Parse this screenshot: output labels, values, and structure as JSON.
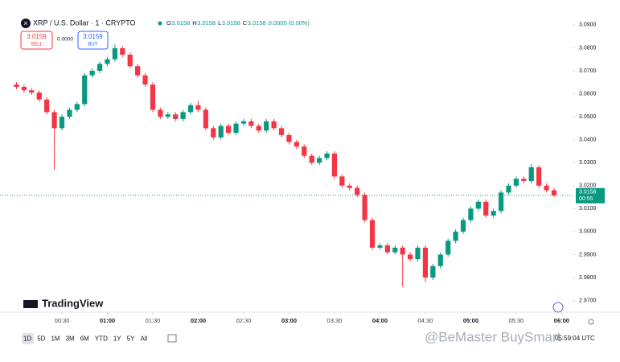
{
  "header": {
    "symbol": "XRP / U.S. Dollar · 1 · CRYPTO",
    "ohlc": [
      {
        "label": "O",
        "value": "3.0158"
      },
      {
        "label": "H",
        "value": "3.0158"
      },
      {
        "label": "L",
        "value": "3.0158"
      },
      {
        "label": "C",
        "value": "3.0158"
      }
    ],
    "change": "0.0000 (0.00%)",
    "sell": {
      "price": "3.0159",
      "label": "SELL"
    },
    "spread": "0.0000",
    "buy": {
      "price": "3.0159",
      "label": "BUY"
    }
  },
  "chart_data": {
    "type": "candlestick",
    "up_color": "#089981",
    "down_color": "#f23645",
    "x": [
      "00:00",
      "00:05",
      "00:10",
      "00:15",
      "00:20",
      "00:25",
      "00:30",
      "00:35",
      "00:40",
      "00:45",
      "00:50",
      "00:55",
      "01:00",
      "01:05",
      "01:10",
      "01:15",
      "01:20",
      "01:25",
      "01:30",
      "01:35",
      "01:40",
      "01:45",
      "01:50",
      "01:55",
      "02:00",
      "02:05",
      "02:10",
      "02:15",
      "02:20",
      "02:25",
      "02:30",
      "02:35",
      "02:40",
      "02:45",
      "02:50",
      "02:55",
      "03:00",
      "03:05",
      "03:10",
      "03:15",
      "03:20",
      "03:25",
      "03:30",
      "03:35",
      "03:40",
      "03:45",
      "03:50",
      "03:55",
      "04:00",
      "04:05",
      "04:10",
      "04:15",
      "04:20",
      "04:25",
      "04:30",
      "04:35",
      "04:40",
      "04:45",
      "04:50",
      "04:55",
      "05:00",
      "05:05",
      "05:10",
      "05:15",
      "05:20",
      "05:25",
      "05:30",
      "05:35",
      "05:40",
      "05:45",
      "05:50",
      "05:55"
    ],
    "open": [
      3.064,
      3.063,
      3.0615,
      3.0605,
      3.0575,
      3.052,
      3.045,
      3.05,
      3.053,
      3.0555,
      3.068,
      3.07,
      3.073,
      3.075,
      3.0798,
      3.077,
      3.072,
      3.068,
      3.064,
      3.053,
      3.05,
      3.051,
      3.049,
      3.052,
      3.055,
      3.053,
      3.045,
      3.041,
      3.046,
      3.043,
      3.047,
      3.048,
      3.046,
      3.044,
      3.048,
      3.045,
      3.042,
      3.039,
      3.037,
      3.033,
      3.03,
      3.032,
      3.034,
      3.024,
      3.02,
      3.019,
      3.016,
      3.005,
      2.993,
      2.994,
      2.991,
      2.993,
      2.99,
      2.988,
      2.993,
      2.98,
      2.985,
      2.99,
      2.996,
      3.0,
      3.005,
      3.01,
      3.013,
      3.007,
      3.009,
      3.017,
      3.02,
      3.023,
      3.022,
      3.028,
      3.02,
      3.018
    ],
    "high": [
      3.065,
      3.064,
      3.0625,
      3.0615,
      3.0585,
      3.053,
      3.051,
      3.054,
      3.0565,
      3.069,
      3.071,
      3.074,
      3.076,
      3.0815,
      3.0808,
      3.078,
      3.073,
      3.069,
      3.065,
      3.054,
      3.052,
      3.052,
      3.053,
      3.056,
      3.057,
      3.054,
      3.046,
      3.047,
      3.047,
      3.048,
      3.049,
      3.049,
      3.047,
      3.049,
      3.049,
      3.046,
      3.043,
      3.04,
      3.038,
      3.034,
      3.033,
      3.035,
      3.035,
      3.025,
      3.021,
      3.02,
      3.017,
      3.006,
      2.995,
      2.995,
      2.994,
      2.994,
      2.991,
      2.994,
      2.994,
      2.986,
      2.991,
      2.997,
      3.001,
      3.006,
      3.011,
      3.014,
      3.014,
      3.01,
      3.018,
      3.021,
      3.024,
      3.024,
      3.0295,
      3.029,
      3.021,
      3.019
    ],
    "low": [
      3.062,
      3.0605,
      3.0595,
      3.0565,
      3.051,
      3.027,
      3.044,
      3.049,
      3.052,
      3.0545,
      3.067,
      3.069,
      3.072,
      3.074,
      3.076,
      3.071,
      3.067,
      3.063,
      3.052,
      3.049,
      3.049,
      3.048,
      3.048,
      3.051,
      3.052,
      3.044,
      3.04,
      3.04,
      3.042,
      3.042,
      3.046,
      3.045,
      3.043,
      3.043,
      3.044,
      3.041,
      3.038,
      3.036,
      3.032,
      3.029,
      3.029,
      3.031,
      3.023,
      3.019,
      3.018,
      3.015,
      3.004,
      2.992,
      2.992,
      2.99,
      2.99,
      2.976,
      2.987,
      2.987,
      2.978,
      2.979,
      2.984,
      2.989,
      2.995,
      2.999,
      3.004,
      3.009,
      3.006,
      3.006,
      3.008,
      3.016,
      3.019,
      3.021,
      3.021,
      3.019,
      3.017,
      3.015
    ],
    "close": [
      3.063,
      3.0615,
      3.0605,
      3.0575,
      3.052,
      3.045,
      3.05,
      3.053,
      3.0555,
      3.068,
      3.07,
      3.073,
      3.075,
      3.0798,
      3.077,
      3.072,
      3.068,
      3.064,
      3.053,
      3.05,
      3.051,
      3.049,
      3.052,
      3.055,
      3.053,
      3.045,
      3.041,
      3.046,
      3.043,
      3.047,
      3.048,
      3.046,
      3.044,
      3.048,
      3.045,
      3.042,
      3.039,
      3.037,
      3.033,
      3.03,
      3.032,
      3.034,
      3.024,
      3.02,
      3.019,
      3.016,
      3.005,
      2.993,
      2.994,
      2.991,
      2.993,
      2.99,
      2.988,
      2.993,
      2.98,
      2.985,
      2.99,
      2.996,
      3.0,
      3.005,
      3.01,
      3.013,
      3.007,
      3.009,
      3.017,
      3.02,
      3.023,
      3.022,
      3.028,
      3.02,
      3.018,
      3.0158
    ],
    "xlim": [
      "00:00",
      "06:06"
    ],
    "xticks": [
      "00:30",
      "01:00",
      "01:30",
      "02:00",
      "02:30",
      "03:00",
      "03:30",
      "04:00",
      "04:30",
      "05:00",
      "05:30",
      "06:00"
    ],
    "ylim": [
      2.966,
      3.0945
    ],
    "yticks": [
      {
        "value": 3.09,
        "label": "3.0900"
      },
      {
        "value": 3.08,
        "label": "3.0800"
      },
      {
        "value": 3.07,
        "label": "3.0700"
      },
      {
        "value": 3.06,
        "label": "3.0600"
      },
      {
        "value": 3.05,
        "label": "3.0500"
      },
      {
        "value": 3.04,
        "label": "3.0400"
      },
      {
        "value": 3.03,
        "label": "3.0300"
      },
      {
        "value": 3.02,
        "label": "3.0200"
      },
      {
        "value": 3.01,
        "label": "3.0100"
      },
      {
        "value": 3.0,
        "label": "3.0000"
      },
      {
        "value": 2.99,
        "label": "2.9900"
      },
      {
        "value": 2.98,
        "label": "2.9800"
      },
      {
        "value": 2.97,
        "label": "2.9700"
      }
    ],
    "last_price": {
      "value": 3.0158,
      "label": "3.0158",
      "countdown": "00:55"
    }
  },
  "branding": "TradingView",
  "toolbar": {
    "periods": [
      "1D",
      "5D",
      "1M",
      "3M",
      "6M",
      "YTD",
      "1Y",
      "5Y",
      "All"
    ],
    "clock": "05:59:04 UTC"
  },
  "watermark": "@BeMaster BuySmart"
}
